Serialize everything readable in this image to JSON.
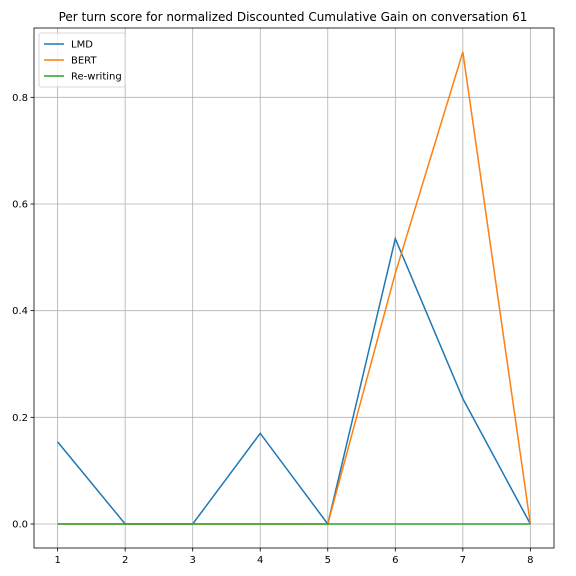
{
  "chart_data": {
    "type": "line",
    "title": "Per turn score for normalized Discounted Cumulative Gain on conversation 61",
    "xlabel": "",
    "ylabel": "",
    "x": [
      1,
      2,
      3,
      4,
      5,
      6,
      7,
      8
    ],
    "xlim": [
      0.65,
      8.35
    ],
    "ylim": [
      -0.045,
      0.93
    ],
    "xticks": [
      1,
      2,
      3,
      4,
      5,
      6,
      7,
      8
    ],
    "yticks": [
      0.0,
      0.2,
      0.4,
      0.6,
      0.8
    ],
    "ytick_labels": [
      "0.0",
      "0.2",
      "0.4",
      "0.6",
      "0.8"
    ],
    "grid": true,
    "legend_position": "top-left",
    "series": [
      {
        "name": "LMD",
        "color": "#1f77b4",
        "values": [
          0.154,
          0.0,
          0.0,
          0.17,
          0.0,
          0.535,
          0.235,
          0.0
        ]
      },
      {
        "name": "BERT",
        "color": "#ff7f0e",
        "values": [
          0.0,
          0.0,
          0.0,
          0.0,
          0.0,
          0.47,
          0.885,
          0.0
        ]
      },
      {
        "name": "Re-writing",
        "color": "#2ca02c",
        "values": [
          0.0,
          0.0,
          0.0,
          0.0,
          0.0,
          0.0,
          0.0,
          0.0
        ]
      }
    ]
  }
}
